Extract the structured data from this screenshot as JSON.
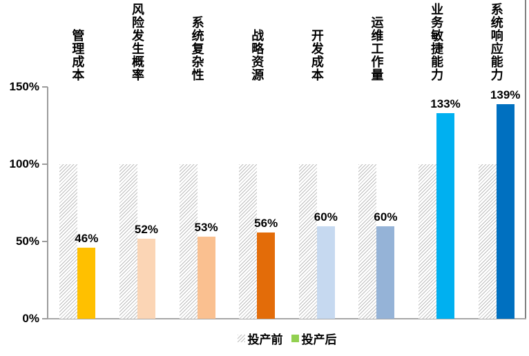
{
  "chart_data": {
    "type": "bar",
    "title": "",
    "categories": [
      "管理成本",
      "风险发生概率",
      "系统复杂性",
      "战略资源",
      "开发成本",
      "运维工作量",
      "业务敏捷能力",
      "系统响应能力"
    ],
    "series": [
      {
        "name": "投产前",
        "values": [
          100,
          100,
          100,
          100,
          100,
          100,
          100,
          100
        ],
        "style": "hatched",
        "hatch_line_color": "#BDBDBD",
        "legend_color": "#BDBDBD"
      },
      {
        "name": "投产后",
        "values": [
          46,
          52,
          53,
          56,
          60,
          60,
          133,
          139
        ],
        "style": "solid",
        "legend_color": "#92D050",
        "colors": [
          "#FFC000",
          "#FBD5B5",
          "#FAC090",
          "#E36C09",
          "#C6D9F0",
          "#95B3D7",
          "#00B0F0",
          "#0070C0"
        ]
      }
    ],
    "value_labels": [
      "46%",
      "52%",
      "53%",
      "56%",
      "60%",
      "60%",
      "133%",
      "139%"
    ],
    "yticks": [
      {
        "label": "0%",
        "value": 0
      },
      {
        "label": "50%",
        "value": 50
      },
      {
        "label": "100%",
        "value": 100
      },
      {
        "label": "150%",
        "value": 150
      }
    ],
    "ylim": [
      0,
      150
    ],
    "grid": false,
    "legend_position": "bottom-center",
    "axis_colors": {
      "y_axis": "#9B9B9B",
      "x_axis": "#A6A6A6",
      "right_border": "#808080"
    }
  }
}
